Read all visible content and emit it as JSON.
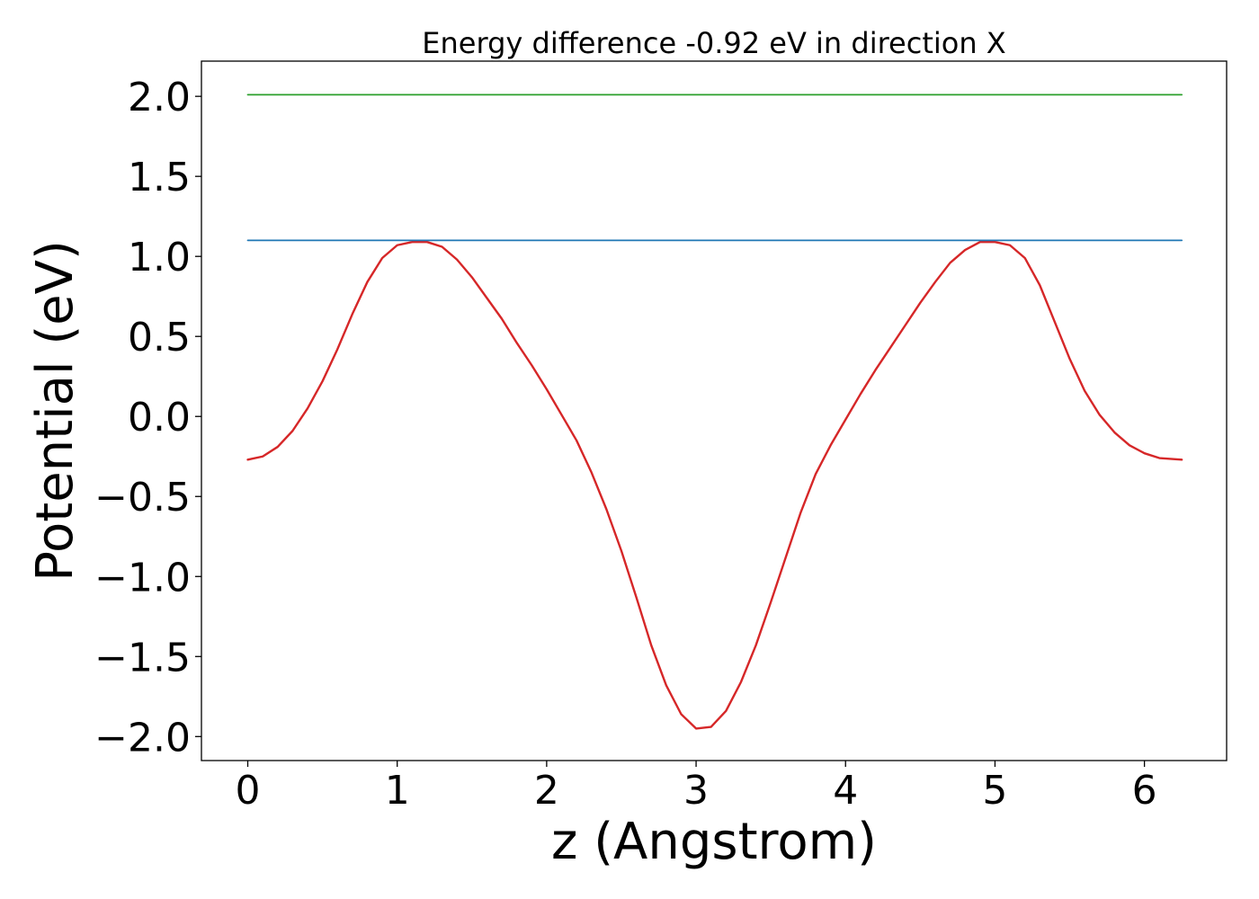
{
  "chart_data": {
    "type": "line",
    "title": "Energy difference -0.92 eV in direction X",
    "xlabel": "z (Angstrom)",
    "ylabel": "Potential (eV)",
    "xlim": [
      -0.31,
      6.55
    ],
    "ylim": [
      -2.15,
      2.22
    ],
    "xticks": [
      0,
      1,
      2,
      3,
      4,
      5,
      6
    ],
    "yticks": [
      -2.0,
      -1.5,
      -1.0,
      -0.5,
      0.0,
      0.5,
      1.0,
      1.5,
      2.0
    ],
    "xtick_labels": [
      "0",
      "1",
      "2",
      "3",
      "4",
      "5",
      "6"
    ],
    "ytick_labels": [
      "−2.0",
      "−1.5",
      "−1.0",
      "−0.5",
      "0.0",
      "0.5",
      "1.0",
      "1.5",
      "2.0"
    ],
    "grid": false,
    "series": [
      {
        "color": "#d62728",
        "x": [
          0.0,
          0.1,
          0.2,
          0.3,
          0.4,
          0.5,
          0.6,
          0.7,
          0.8,
          0.9,
          1.0,
          1.1,
          1.2,
          1.3,
          1.4,
          1.5,
          1.6,
          1.7,
          1.8,
          1.9,
          2.0,
          2.1,
          2.2,
          2.3,
          2.4,
          2.5,
          2.6,
          2.7,
          2.8,
          2.9,
          3.0,
          3.1,
          3.2,
          3.3,
          3.4,
          3.5,
          3.6,
          3.7,
          3.8,
          3.9,
          4.0,
          4.1,
          4.2,
          4.3,
          4.4,
          4.5,
          4.6,
          4.7,
          4.8,
          4.9,
          5.0,
          5.1,
          5.2,
          5.3,
          5.4,
          5.5,
          5.6,
          5.7,
          5.8,
          5.9,
          6.0,
          6.1,
          6.25
        ],
        "y": [
          -0.27,
          -0.25,
          -0.19,
          -0.09,
          0.05,
          0.22,
          0.42,
          0.64,
          0.84,
          0.99,
          1.07,
          1.09,
          1.09,
          1.06,
          0.98,
          0.87,
          0.74,
          0.61,
          0.46,
          0.32,
          0.17,
          0.01,
          -0.15,
          -0.35,
          -0.58,
          -0.84,
          -1.13,
          -1.43,
          -1.68,
          -1.86,
          -1.95,
          -1.94,
          -1.84,
          -1.66,
          -1.43,
          -1.16,
          -0.88,
          -0.6,
          -0.36,
          -0.18,
          -0.02,
          0.14,
          0.29,
          0.43,
          0.57,
          0.71,
          0.84,
          0.96,
          1.04,
          1.09,
          1.09,
          1.07,
          0.99,
          0.82,
          0.59,
          0.36,
          0.16,
          0.01,
          -0.1,
          -0.18,
          -0.23,
          -0.26,
          -0.27
        ]
      },
      {
        "color": "#1f77b4",
        "x": [
          0.0,
          6.25
        ],
        "y": [
          1.1,
          1.1
        ]
      },
      {
        "color": "#2ca02c",
        "x": [
          0.0,
          6.25
        ],
        "y": [
          2.01,
          2.01
        ]
      }
    ]
  }
}
